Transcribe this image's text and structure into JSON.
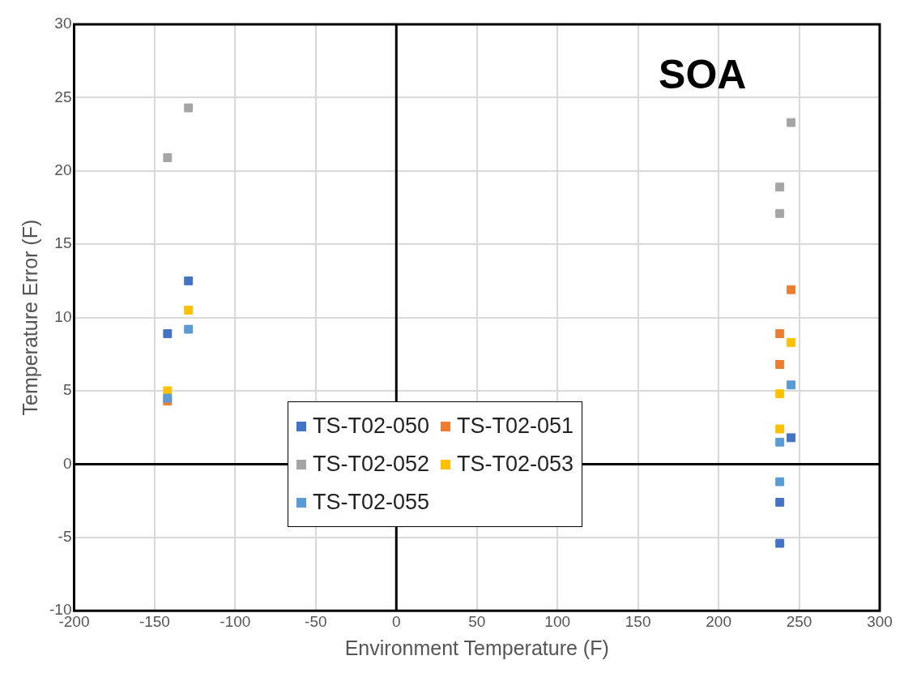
{
  "chart_data": {
    "type": "scatter",
    "xlabel": "Environment Temperature (F)",
    "ylabel": "Temperature Error (F)",
    "annotations": [
      "SOA"
    ],
    "xlim": [
      -200,
      300
    ],
    "xticks": [
      -200,
      -150,
      -100,
      -50,
      0,
      50,
      100,
      150,
      200,
      250,
      300
    ],
    "ylim": [
      -10,
      30
    ],
    "yticks": [
      -10,
      -5,
      0,
      5,
      10,
      15,
      20,
      25,
      30
    ],
    "grid": true,
    "legend": "bottom",
    "marker": "square",
    "series": [
      {
        "name": "TS-T02-050",
        "color": "#4472c4",
        "x": [
          -142,
          -129,
          238,
          238,
          245
        ],
        "values": [
          8.9,
          12.5,
          -2.6,
          -5.4,
          1.8
        ]
      },
      {
        "name": "TS-T02-051",
        "color": "#ed7d31",
        "x": [
          -142,
          245,
          238,
          238
        ],
        "values": [
          4.3,
          11.9,
          8.9,
          6.8
        ]
      },
      {
        "name": "TS-T02-052",
        "color": "#a5a5a5",
        "x": [
          -142,
          -129,
          245,
          238,
          238
        ],
        "values": [
          20.9,
          24.3,
          23.3,
          18.9,
          17.1
        ]
      },
      {
        "name": "TS-T02-053",
        "color": "#ffc000",
        "x": [
          -142,
          -129,
          245,
          238,
          238
        ],
        "values": [
          5.0,
          10.5,
          8.3,
          4.8,
          2.4
        ]
      },
      {
        "name": "TS-T02-055",
        "color": "#5b9bd5",
        "x": [
          -142,
          -129,
          245,
          238,
          238
        ],
        "values": [
          4.5,
          9.2,
          5.4,
          1.5,
          -1.2
        ]
      }
    ]
  }
}
